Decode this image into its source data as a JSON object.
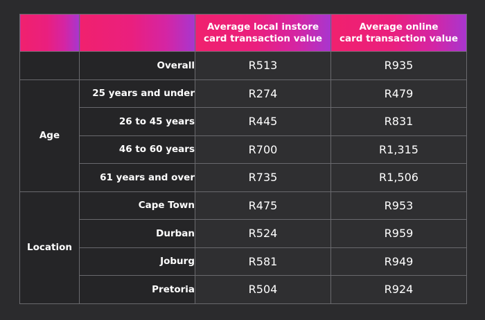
{
  "header": {
    "col_instore": "Average local instore\ncard transaction value",
    "col_online": "Average online\ncard transaction value"
  },
  "rows": [
    {
      "group": "",
      "label": "Overall",
      "instore": "R513",
      "online": "R935"
    },
    {
      "group": "Age",
      "label": "25 years and under",
      "instore": "R274",
      "online": "R479"
    },
    {
      "group": "Age",
      "label": "26 to 45 years",
      "instore": "R445",
      "online": "R831"
    },
    {
      "group": "Age",
      "label": "46 to 60 years",
      "instore": "R700",
      "online": "R1,315"
    },
    {
      "group": "Age",
      "label": "61 years and over",
      "instore": "R735",
      "online": "R1,506"
    },
    {
      "group": "Location",
      "label": "Cape Town",
      "instore": "R475",
      "online": "R953"
    },
    {
      "group": "Location",
      "label": "Durban",
      "instore": "R524",
      "online": "R959"
    },
    {
      "group": "Location",
      "label": "Joburg",
      "instore": "R581",
      "online": "R949"
    },
    {
      "group": "Location",
      "label": "Pretoria",
      "instore": "R504",
      "online": "R924"
    }
  ],
  "groups": {
    "age": "Age",
    "location": "Location"
  },
  "colors": {
    "background": "#2b2b2d",
    "header_gradient_start": "#f0216e",
    "header_gradient_end": "#a836cf"
  }
}
